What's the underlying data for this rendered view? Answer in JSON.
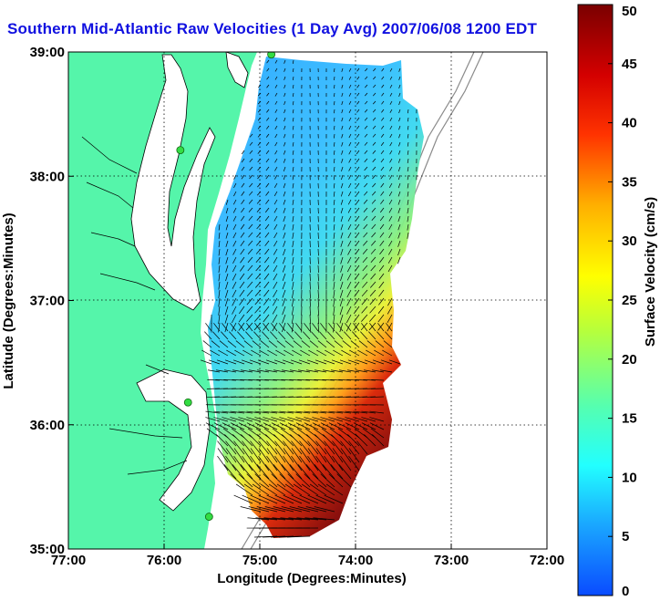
{
  "title": "Southern Mid-Atlantic Raw Velocities (1 Day Avg) 2007/06/08 1200 EDT",
  "xaxis": {
    "label": "Longitude (Degrees:Minutes)",
    "ticks": [
      {
        "value": -77,
        "label": "77:00"
      },
      {
        "value": -76,
        "label": "76:00"
      },
      {
        "value": -75,
        "label": "75:00"
      },
      {
        "value": -74,
        "label": "74:00"
      },
      {
        "value": -73,
        "label": "73:00"
      },
      {
        "value": -72,
        "label": "72:00"
      }
    ],
    "range": [
      -77,
      -72
    ]
  },
  "yaxis": {
    "label": "Latitude (Degrees:Minutes)",
    "ticks": [
      {
        "value": 39,
        "label": "39:00"
      },
      {
        "value": 38,
        "label": "38:00"
      },
      {
        "value": 37,
        "label": "37:00"
      },
      {
        "value": 36,
        "label": "36:00"
      },
      {
        "value": 35,
        "label": "35:00"
      }
    ],
    "range": [
      35,
      39
    ]
  },
  "colorbar": {
    "label": "Surface Velocity (cm/s)",
    "range": [
      0,
      50
    ],
    "ticks": [
      "0",
      "5",
      "10",
      "15",
      "20",
      "25",
      "30",
      "35",
      "40",
      "45",
      "50"
    ]
  },
  "colors": {
    "land": "#55f5aa",
    "water": "#ffffff",
    "title": "#1010e0",
    "station": "#33dd44"
  },
  "stations": [
    {
      "lon": -74.88,
      "lat": 38.98
    },
    {
      "lon": -75.83,
      "lat": 38.21
    },
    {
      "lon": -75.75,
      "lat": 36.18
    },
    {
      "lon": -75.53,
      "lat": 35.26
    }
  ]
}
